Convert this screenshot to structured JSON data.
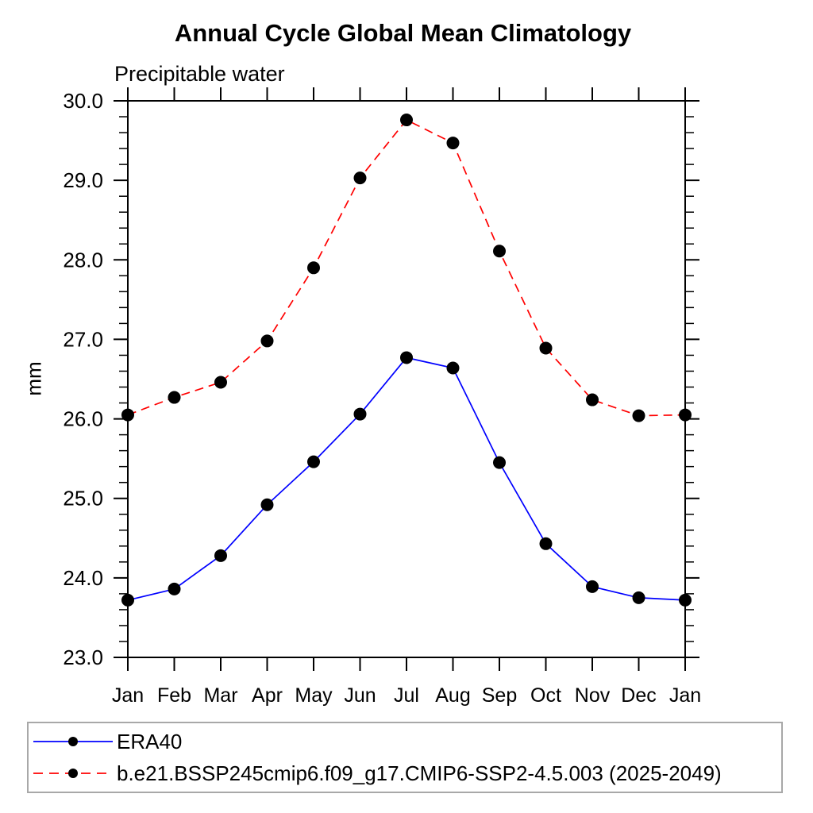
{
  "chart_data": {
    "type": "line",
    "title": "Annual Cycle Global Mean Climatology",
    "subtitle": "Precipitable water",
    "ylabel": "mm",
    "xlabel": "",
    "categories": [
      "Jan",
      "Feb",
      "Mar",
      "Apr",
      "May",
      "Jun",
      "Jul",
      "Aug",
      "Sep",
      "Oct",
      "Nov",
      "Dec",
      "Jan"
    ],
    "ylim": [
      23.0,
      30.0
    ],
    "y_major_step": 1.0,
    "y_minor_step": 0.2,
    "y_tick_labels": [
      "23.0",
      "24.0",
      "25.0",
      "26.0",
      "27.0",
      "28.0",
      "29.0",
      "30.0"
    ],
    "grid": false,
    "legend_position": "bottom-left-box",
    "axis_color": "#000000",
    "marker_color": "#000000",
    "legend_border_color": "#a8a8a8",
    "series": [
      {
        "name": "ERA40",
        "color": "#0000ff",
        "line_style": "solid",
        "marker": "filled-circle",
        "values": [
          23.72,
          23.86,
          24.28,
          24.92,
          25.46,
          26.06,
          26.77,
          26.64,
          25.45,
          24.43,
          23.89,
          23.75,
          23.72
        ]
      },
      {
        "name": "b.e21.BSSP245cmip6.f09_g17.CMIP6-SSP2-4.5.003 (2025-2049)",
        "color": "#ff0000",
        "line_style": "dashed",
        "marker": "filled-circle",
        "values": [
          26.05,
          26.27,
          26.46,
          26.98,
          27.9,
          29.03,
          29.76,
          29.47,
          28.11,
          26.89,
          26.24,
          26.04,
          26.05
        ]
      }
    ]
  }
}
